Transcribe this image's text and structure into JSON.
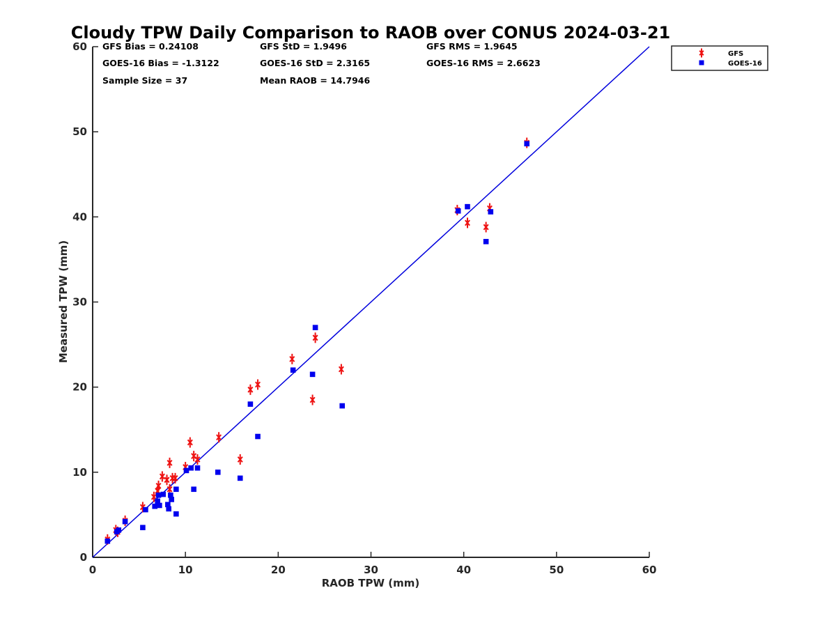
{
  "chart_data": {
    "type": "scatter",
    "title": "Cloudy TPW Daily Comparison to RAOB over CONUS 2024-03-21",
    "xlabel": "RAOB TPW (mm)",
    "ylabel": "Measured TPW (mm)",
    "xlim": [
      0,
      60
    ],
    "ylim": [
      0,
      60
    ],
    "xticks": [
      "0",
      "10",
      "20",
      "30",
      "40",
      "50",
      "60"
    ],
    "yticks": [
      "0",
      "10",
      "20",
      "30",
      "40",
      "50",
      "60"
    ],
    "grid": false,
    "legend_position": "outside-top-right",
    "reference_line": {
      "x": [
        0,
        60
      ],
      "y": [
        0,
        60
      ],
      "color": "#0000dd"
    },
    "stats": [
      [
        "GFS Bias = 0.24108",
        "GFS StD = 1.9496",
        "GFS RMS = 1.9645"
      ],
      [
        "GOES-16 Bias = -1.3122",
        "GOES-16 StD = 2.3165",
        "GOES-16 RMS = 2.6623"
      ],
      [
        "Sample Size = 37",
        "Mean RAOB = 14.7946",
        ""
      ]
    ],
    "series": [
      {
        "name": "GFS",
        "marker": "asterisk",
        "color": "#ee1111",
        "points": [
          [
            1.6,
            2.1
          ],
          [
            2.5,
            3.2
          ],
          [
            2.7,
            3.0
          ],
          [
            3.5,
            4.3
          ],
          [
            5.4,
            5.9
          ],
          [
            6.6,
            7.1
          ],
          [
            7.0,
            7.8
          ],
          [
            7.1,
            8.4
          ],
          [
            7.5,
            9.5
          ],
          [
            8.0,
            9.1
          ],
          [
            8.3,
            11.1
          ],
          [
            8.3,
            8.0
          ],
          [
            8.6,
            9.3
          ],
          [
            8.9,
            9.3
          ],
          [
            10.0,
            10.6
          ],
          [
            10.5,
            13.5
          ],
          [
            10.9,
            11.9
          ],
          [
            11.3,
            11.5
          ],
          [
            13.6,
            14.1
          ],
          [
            15.9,
            11.5
          ],
          [
            17.0,
            19.7
          ],
          [
            17.8,
            20.3
          ],
          [
            21.5,
            23.3
          ],
          [
            23.7,
            18.5
          ],
          [
            24.0,
            25.8
          ],
          [
            26.8,
            22.1
          ],
          [
            39.3,
            40.8
          ],
          [
            40.4,
            39.3
          ],
          [
            42.4,
            38.8
          ],
          [
            42.8,
            41.0
          ],
          [
            46.8,
            48.7
          ]
        ]
      },
      {
        "name": "GOES-16",
        "marker": "square",
        "color": "#0000ee",
        "points": [
          [
            1.6,
            1.9
          ],
          [
            2.6,
            3.0
          ],
          [
            2.8,
            3.2
          ],
          [
            3.5,
            4.2
          ],
          [
            5.4,
            3.5
          ],
          [
            5.7,
            5.6
          ],
          [
            6.7,
            6.0
          ],
          [
            7.0,
            6.6
          ],
          [
            7.1,
            7.3
          ],
          [
            7.2,
            6.1
          ],
          [
            7.6,
            7.4
          ],
          [
            8.1,
            6.2
          ],
          [
            8.2,
            5.7
          ],
          [
            8.4,
            7.3
          ],
          [
            8.5,
            6.8
          ],
          [
            9.0,
            8.0
          ],
          [
            9.0,
            5.1
          ],
          [
            10.1,
            10.2
          ],
          [
            10.6,
            10.5
          ],
          [
            10.9,
            8.0
          ],
          [
            11.3,
            10.5
          ],
          [
            13.5,
            10.0
          ],
          [
            15.9,
            9.3
          ],
          [
            17.0,
            18.0
          ],
          [
            17.8,
            14.2
          ],
          [
            21.6,
            22.0
          ],
          [
            23.7,
            21.5
          ],
          [
            24.0,
            27.0
          ],
          [
            26.9,
            17.8
          ],
          [
            39.4,
            40.7
          ],
          [
            40.4,
            41.2
          ],
          [
            42.4,
            37.1
          ],
          [
            42.9,
            40.6
          ],
          [
            46.8,
            48.6
          ]
        ]
      }
    ]
  }
}
